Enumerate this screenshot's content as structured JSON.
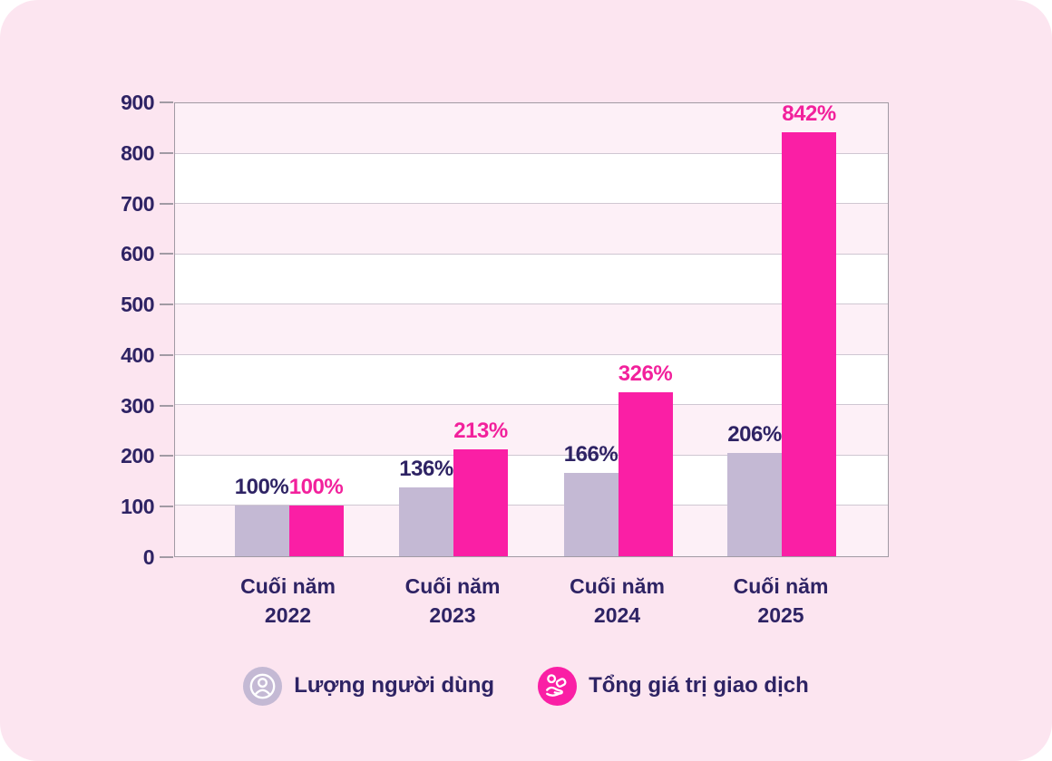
{
  "colors": {
    "background": "#fce5f0",
    "axis": "#a19aa4",
    "gridline": "#cfc7d2",
    "text": "#2e2364"
  },
  "chart_data": {
    "type": "bar",
    "title": "",
    "categories": [
      {
        "line1": "Cuối năm",
        "line2": "2022"
      },
      {
        "line1": "Cuối năm",
        "line2": "2023"
      },
      {
        "line1": "Cuối năm",
        "line2": "2024"
      },
      {
        "line1": "Cuối năm",
        "line2": "2025"
      }
    ],
    "series": [
      {
        "name": "Lượng người dùng",
        "slug": "users",
        "values": [
          100,
          136,
          166,
          206
        ],
        "data_labels": [
          "100%",
          "136%",
          "166%",
          "206%"
        ],
        "bar_color": "#c4b9d4",
        "label_color": "#2e2364"
      },
      {
        "name": "Tổng giá trị giao dịch",
        "slug": "transactions",
        "values": [
          100,
          213,
          326,
          842
        ],
        "data_labels": [
          "100%",
          "213%",
          "326%",
          "842%"
        ],
        "bar_color": "#fa1fa5",
        "label_color": "#f2219c"
      }
    ],
    "ylim": [
      0,
      900
    ],
    "ytick_step": 100,
    "grid": true,
    "band_colors": [
      "#fdf0f7",
      "#ffffff"
    ],
    "legend_position": "bottom"
  }
}
